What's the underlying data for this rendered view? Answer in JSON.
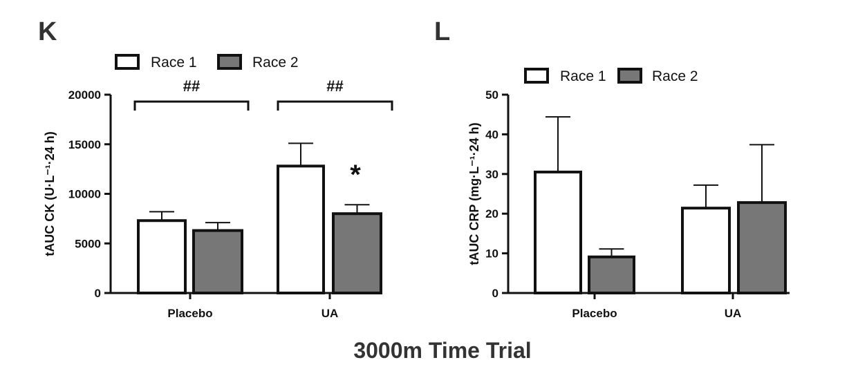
{
  "title": "3000m Time Trial",
  "colors": {
    "race1": "#ffffff",
    "race2": "#777777",
    "stroke": "#111111"
  },
  "chart_data": [
    {
      "panel": "K",
      "type": "bar",
      "categories": [
        "Placebo",
        "UA"
      ],
      "ylabel": "tAUC CK (U·L⁻¹·24 h)",
      "ylim": [
        0,
        20000
      ],
      "yticks": [
        0,
        5000,
        10000,
        15000,
        20000
      ],
      "legend": "top-left",
      "series": [
        {
          "name": "Race 1",
          "values": [
            7300,
            12800
          ],
          "error": [
            900,
            2300
          ]
        },
        {
          "name": "Race 2",
          "values": [
            6300,
            8000
          ],
          "error": [
            800,
            900
          ]
        }
      ],
      "annotations": [
        {
          "text": "##",
          "target": "Placebo"
        },
        {
          "text": "##",
          "target": "UA"
        },
        {
          "text": "*",
          "target": "UA Race 2"
        }
      ]
    },
    {
      "panel": "L",
      "type": "bar",
      "categories": [
        "Placebo",
        "UA"
      ],
      "ylabel": "tAUC CRP (mg·L⁻¹·24 h)",
      "ylim": [
        0,
        50
      ],
      "yticks": [
        0,
        10,
        20,
        30,
        40,
        50
      ],
      "legend": "top-left",
      "series": [
        {
          "name": "Race 1",
          "values": [
            30.5,
            21.4
          ],
          "error": [
            13.9,
            5.8
          ]
        },
        {
          "name": "Race 2",
          "values": [
            9.1,
            22.8
          ],
          "error": [
            2.0,
            14.6
          ]
        }
      ],
      "annotations": []
    }
  ]
}
